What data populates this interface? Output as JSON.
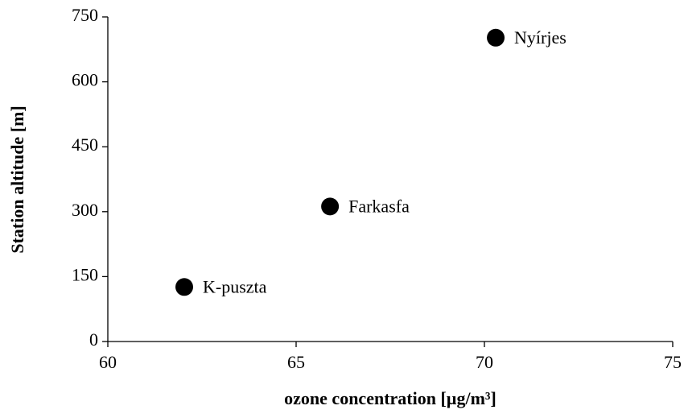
{
  "chart_data": {
    "type": "scatter",
    "x_label": "ozone concentration [µg/m³]",
    "y_label": "Station altitude [m]",
    "series": [
      {
        "color": "#000000",
        "x": [
          62.03,
          65.9,
          70.3
        ],
        "values": [
          126,
          312,
          702
        ],
        "labels": [
          "K-puszta",
          "Farkasfa",
          "Nyírjes"
        ]
      }
    ],
    "xlim": [
      60,
      75
    ],
    "xticks": [
      60,
      65,
      70,
      75
    ],
    "ylim": [
      0,
      750
    ],
    "yticks": [
      0,
      150,
      300,
      450,
      600,
      750
    ],
    "grid": false
  }
}
